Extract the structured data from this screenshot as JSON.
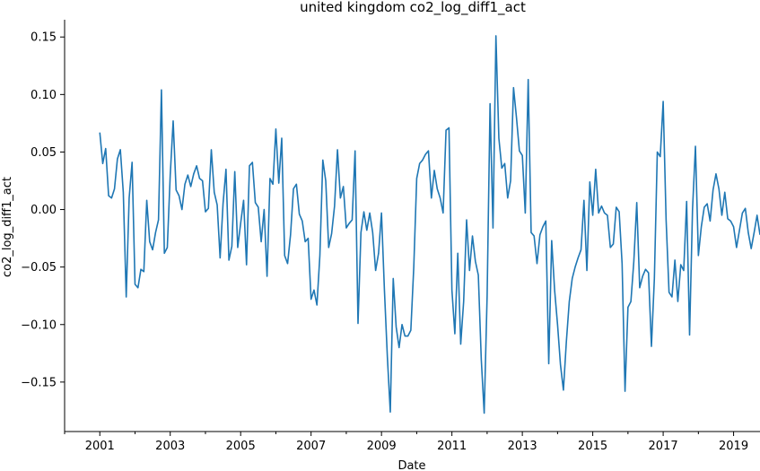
{
  "chart_data": {
    "type": "line",
    "title": "united kingdom co2_log_diff1_act",
    "xlabel": "Date",
    "ylabel": "co2_log_diff1_act",
    "xlim": [
      "2000-01-01",
      "2019-10-01"
    ],
    "ylim": [
      -0.193,
      0.165
    ],
    "grid": false,
    "x_ticks": [
      {
        "date": "2001-01-01",
        "label": "2001"
      },
      {
        "date": "2003-01-01",
        "label": "2003"
      },
      {
        "date": "2005-01-01",
        "label": "2005"
      },
      {
        "date": "2007-01-01",
        "label": "2007"
      },
      {
        "date": "2009-01-01",
        "label": "2009"
      },
      {
        "date": "2011-01-01",
        "label": "2011"
      },
      {
        "date": "2013-01-01",
        "label": "2013"
      },
      {
        "date": "2015-01-01",
        "label": "2015"
      },
      {
        "date": "2017-01-01",
        "label": "2017"
      },
      {
        "date": "2019-01-01",
        "label": "2019"
      }
    ],
    "x_minor_tick_years": [
      2000,
      2002,
      2004,
      2006,
      2008,
      2010,
      2012,
      2014,
      2016,
      2018
    ],
    "y_ticks": [
      {
        "value": 0.15,
        "label": "0.15"
      },
      {
        "value": 0.1,
        "label": "0.10"
      },
      {
        "value": 0.05,
        "label": "0.05"
      },
      {
        "value": 0.0,
        "label": "0.00"
      },
      {
        "value": -0.05,
        "label": "−0.05"
      },
      {
        "value": -0.1,
        "label": "−0.10"
      },
      {
        "value": -0.15,
        "label": "−0.15"
      }
    ],
    "series": [
      {
        "color": "#1f77b4",
        "x_start": "2001-01",
        "x_step": "month",
        "values": [
          0.067,
          0.04,
          0.053,
          0.012,
          0.01,
          0.018,
          0.044,
          0.052,
          0.015,
          -0.076,
          0.01,
          0.041,
          -0.065,
          -0.068,
          -0.052,
          -0.054,
          0.008,
          -0.028,
          -0.035,
          -0.02,
          -0.009,
          0.104,
          -0.038,
          -0.033,
          0.03,
          0.077,
          0.017,
          0.012,
          0.0,
          0.022,
          0.03,
          0.02,
          0.031,
          0.038,
          0.027,
          0.025,
          -0.002,
          0.001,
          0.052,
          0.015,
          0.004,
          -0.042,
          0.005,
          0.035,
          -0.044,
          -0.032,
          0.033,
          -0.033,
          -0.012,
          0.008,
          -0.048,
          0.038,
          0.041,
          0.006,
          0.002,
          -0.028,
          0.0,
          -0.058,
          0.027,
          0.022,
          0.07,
          0.023,
          0.062,
          -0.04,
          -0.047,
          -0.022,
          0.018,
          0.022,
          -0.004,
          -0.01,
          -0.028,
          -0.025,
          -0.078,
          -0.07,
          -0.083,
          -0.04,
          0.043,
          0.025,
          -0.033,
          -0.021,
          0.003,
          0.052,
          0.01,
          0.02,
          -0.016,
          -0.012,
          -0.009,
          0.051,
          -0.099,
          -0.02,
          -0.002,
          -0.018,
          -0.003,
          -0.02,
          -0.053,
          -0.038,
          -0.003,
          -0.07,
          -0.128,
          -0.176,
          -0.06,
          -0.102,
          -0.12,
          -0.1,
          -0.11,
          -0.11,
          -0.105,
          -0.05,
          0.027,
          0.04,
          0.043,
          0.048,
          0.051,
          0.01,
          0.034,
          0.018,
          0.01,
          -0.003,
          0.069,
          0.071,
          -0.07,
          -0.108,
          -0.038,
          -0.117,
          -0.08,
          -0.009,
          -0.053,
          -0.023,
          -0.045,
          -0.057,
          -0.13,
          -0.177,
          -0.075,
          0.092,
          -0.016,
          0.151,
          0.062,
          0.036,
          0.04,
          0.01,
          0.025,
          0.106,
          0.08,
          0.051,
          0.047,
          -0.003,
          0.113,
          -0.02,
          -0.023,
          -0.047,
          -0.022,
          -0.015,
          -0.01,
          -0.134,
          -0.027,
          -0.07,
          -0.1,
          -0.135,
          -0.157,
          -0.115,
          -0.08,
          -0.06,
          -0.05,
          -0.042,
          -0.035,
          0.008,
          -0.053,
          0.024,
          -0.005,
          0.035,
          -0.003,
          0.003,
          -0.003,
          -0.005,
          -0.033,
          -0.03,
          0.002,
          -0.002,
          -0.047,
          -0.158,
          -0.085,
          -0.08,
          -0.045,
          0.006,
          -0.068,
          -0.058,
          -0.052,
          -0.055,
          -0.119,
          -0.06,
          0.05,
          0.046,
          0.094,
          -0.009,
          -0.072,
          -0.076,
          -0.044,
          -0.08,
          -0.048,
          -0.053,
          0.007,
          -0.109,
          0.0,
          0.055,
          -0.04,
          -0.015,
          0.002,
          0.005,
          -0.01,
          0.017,
          0.031,
          0.018,
          -0.005,
          0.015,
          -0.008,
          -0.01,
          -0.015,
          -0.033,
          -0.018,
          -0.003,
          0.001,
          -0.02,
          -0.034,
          -0.02,
          -0.005,
          -0.022
        ]
      }
    ]
  }
}
